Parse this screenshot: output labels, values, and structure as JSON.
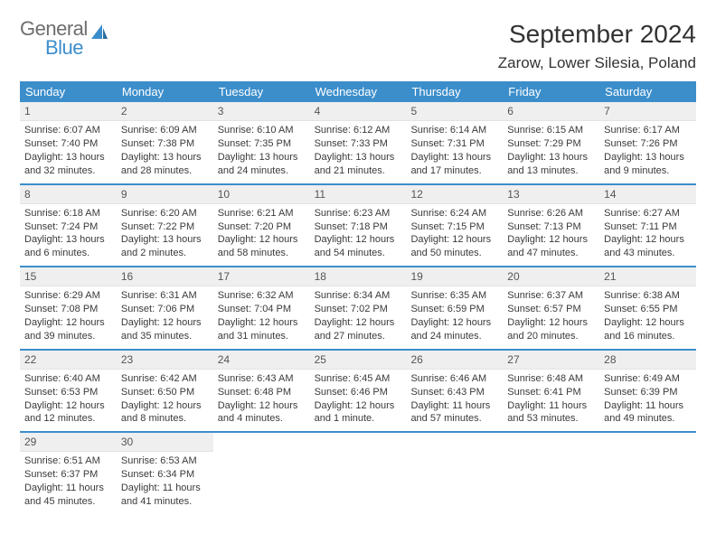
{
  "logo": {
    "top": "General",
    "bottom": "Blue"
  },
  "title": "September 2024",
  "location": "Zarow, Lower Silesia, Poland",
  "brand_color": "#3c8ecb",
  "header_bg": "#efefef",
  "weekdays": [
    "Sunday",
    "Monday",
    "Tuesday",
    "Wednesday",
    "Thursday",
    "Friday",
    "Saturday"
  ],
  "weeks": [
    [
      {
        "n": "1",
        "sr": "Sunrise: 6:07 AM",
        "ss": "Sunset: 7:40 PM",
        "d1": "Daylight: 13 hours",
        "d2": "and 32 minutes."
      },
      {
        "n": "2",
        "sr": "Sunrise: 6:09 AM",
        "ss": "Sunset: 7:38 PM",
        "d1": "Daylight: 13 hours",
        "d2": "and 28 minutes."
      },
      {
        "n": "3",
        "sr": "Sunrise: 6:10 AM",
        "ss": "Sunset: 7:35 PM",
        "d1": "Daylight: 13 hours",
        "d2": "and 24 minutes."
      },
      {
        "n": "4",
        "sr": "Sunrise: 6:12 AM",
        "ss": "Sunset: 7:33 PM",
        "d1": "Daylight: 13 hours",
        "d2": "and 21 minutes."
      },
      {
        "n": "5",
        "sr": "Sunrise: 6:14 AM",
        "ss": "Sunset: 7:31 PM",
        "d1": "Daylight: 13 hours",
        "d2": "and 17 minutes."
      },
      {
        "n": "6",
        "sr": "Sunrise: 6:15 AM",
        "ss": "Sunset: 7:29 PM",
        "d1": "Daylight: 13 hours",
        "d2": "and 13 minutes."
      },
      {
        "n": "7",
        "sr": "Sunrise: 6:17 AM",
        "ss": "Sunset: 7:26 PM",
        "d1": "Daylight: 13 hours",
        "d2": "and 9 minutes."
      }
    ],
    [
      {
        "n": "8",
        "sr": "Sunrise: 6:18 AM",
        "ss": "Sunset: 7:24 PM",
        "d1": "Daylight: 13 hours",
        "d2": "and 6 minutes."
      },
      {
        "n": "9",
        "sr": "Sunrise: 6:20 AM",
        "ss": "Sunset: 7:22 PM",
        "d1": "Daylight: 13 hours",
        "d2": "and 2 minutes."
      },
      {
        "n": "10",
        "sr": "Sunrise: 6:21 AM",
        "ss": "Sunset: 7:20 PM",
        "d1": "Daylight: 12 hours",
        "d2": "and 58 minutes."
      },
      {
        "n": "11",
        "sr": "Sunrise: 6:23 AM",
        "ss": "Sunset: 7:18 PM",
        "d1": "Daylight: 12 hours",
        "d2": "and 54 minutes."
      },
      {
        "n": "12",
        "sr": "Sunrise: 6:24 AM",
        "ss": "Sunset: 7:15 PM",
        "d1": "Daylight: 12 hours",
        "d2": "and 50 minutes."
      },
      {
        "n": "13",
        "sr": "Sunrise: 6:26 AM",
        "ss": "Sunset: 7:13 PM",
        "d1": "Daylight: 12 hours",
        "d2": "and 47 minutes."
      },
      {
        "n": "14",
        "sr": "Sunrise: 6:27 AM",
        "ss": "Sunset: 7:11 PM",
        "d1": "Daylight: 12 hours",
        "d2": "and 43 minutes."
      }
    ],
    [
      {
        "n": "15",
        "sr": "Sunrise: 6:29 AM",
        "ss": "Sunset: 7:08 PM",
        "d1": "Daylight: 12 hours",
        "d2": "and 39 minutes."
      },
      {
        "n": "16",
        "sr": "Sunrise: 6:31 AM",
        "ss": "Sunset: 7:06 PM",
        "d1": "Daylight: 12 hours",
        "d2": "and 35 minutes."
      },
      {
        "n": "17",
        "sr": "Sunrise: 6:32 AM",
        "ss": "Sunset: 7:04 PM",
        "d1": "Daylight: 12 hours",
        "d2": "and 31 minutes."
      },
      {
        "n": "18",
        "sr": "Sunrise: 6:34 AM",
        "ss": "Sunset: 7:02 PM",
        "d1": "Daylight: 12 hours",
        "d2": "and 27 minutes."
      },
      {
        "n": "19",
        "sr": "Sunrise: 6:35 AM",
        "ss": "Sunset: 6:59 PM",
        "d1": "Daylight: 12 hours",
        "d2": "and 24 minutes."
      },
      {
        "n": "20",
        "sr": "Sunrise: 6:37 AM",
        "ss": "Sunset: 6:57 PM",
        "d1": "Daylight: 12 hours",
        "d2": "and 20 minutes."
      },
      {
        "n": "21",
        "sr": "Sunrise: 6:38 AM",
        "ss": "Sunset: 6:55 PM",
        "d1": "Daylight: 12 hours",
        "d2": "and 16 minutes."
      }
    ],
    [
      {
        "n": "22",
        "sr": "Sunrise: 6:40 AM",
        "ss": "Sunset: 6:53 PM",
        "d1": "Daylight: 12 hours",
        "d2": "and 12 minutes."
      },
      {
        "n": "23",
        "sr": "Sunrise: 6:42 AM",
        "ss": "Sunset: 6:50 PM",
        "d1": "Daylight: 12 hours",
        "d2": "and 8 minutes."
      },
      {
        "n": "24",
        "sr": "Sunrise: 6:43 AM",
        "ss": "Sunset: 6:48 PM",
        "d1": "Daylight: 12 hours",
        "d2": "and 4 minutes."
      },
      {
        "n": "25",
        "sr": "Sunrise: 6:45 AM",
        "ss": "Sunset: 6:46 PM",
        "d1": "Daylight: 12 hours",
        "d2": "and 1 minute."
      },
      {
        "n": "26",
        "sr": "Sunrise: 6:46 AM",
        "ss": "Sunset: 6:43 PM",
        "d1": "Daylight: 11 hours",
        "d2": "and 57 minutes."
      },
      {
        "n": "27",
        "sr": "Sunrise: 6:48 AM",
        "ss": "Sunset: 6:41 PM",
        "d1": "Daylight: 11 hours",
        "d2": "and 53 minutes."
      },
      {
        "n": "28",
        "sr": "Sunrise: 6:49 AM",
        "ss": "Sunset: 6:39 PM",
        "d1": "Daylight: 11 hours",
        "d2": "and 49 minutes."
      }
    ],
    [
      {
        "n": "29",
        "sr": "Sunrise: 6:51 AM",
        "ss": "Sunset: 6:37 PM",
        "d1": "Daylight: 11 hours",
        "d2": "and 45 minutes."
      },
      {
        "n": "30",
        "sr": "Sunrise: 6:53 AM",
        "ss": "Sunset: 6:34 PM",
        "d1": "Daylight: 11 hours",
        "d2": "and 41 minutes."
      },
      null,
      null,
      null,
      null,
      null
    ]
  ]
}
